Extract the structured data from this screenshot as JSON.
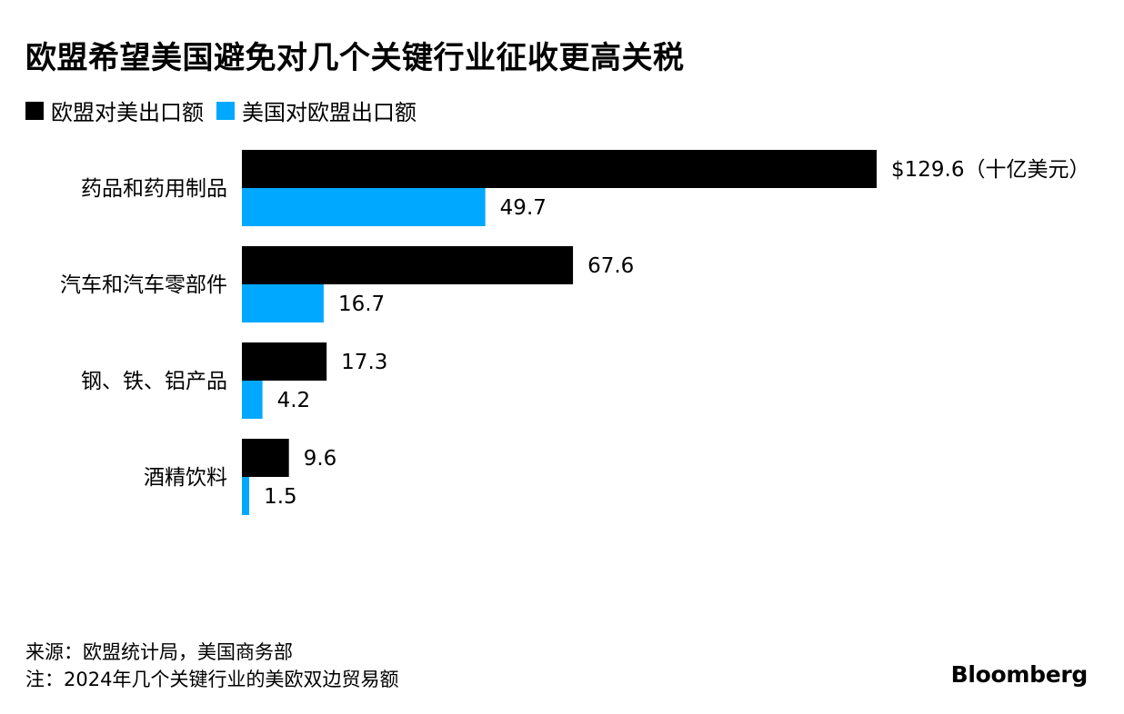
{
  "title": "欧盟希望美国避免对几个关键行业征收更高关税",
  "colors": {
    "eu_export": "#000000",
    "us_export": "#00a8ff",
    "text": "#000000",
    "background": "#ffffff"
  },
  "chart_data": {
    "type": "bar",
    "orientation": "horizontal",
    "title": "欧盟希望美国避免对几个关键行业征收更高关税",
    "categories": [
      "药品和药用制品",
      "汽车和汽车零部件",
      "钢、铁、铝产品",
      "酒精饮料"
    ],
    "series": [
      {
        "name": "欧盟对美出口额",
        "color": "#000000",
        "values": [
          129.6,
          67.6,
          17.3,
          9.6
        ],
        "labels": [
          "$129.6（十亿美元）",
          "67.6",
          "17.3",
          "9.6"
        ]
      },
      {
        "name": "美国对欧盟出口额",
        "color": "#00a8ff",
        "values": [
          49.7,
          16.7,
          4.2,
          1.5
        ],
        "labels": [
          "49.7",
          "16.7",
          "4.2",
          "1.5"
        ]
      }
    ],
    "unit": "十亿美元",
    "xlim": [
      0,
      129.6
    ],
    "legend": "top-left",
    "grid": false
  },
  "footer": {
    "source": "来源：欧盟统计局，美国商务部",
    "note": "注：2024年几个关键行业的美欧双边贸易额"
  },
  "brand": "Bloomberg"
}
